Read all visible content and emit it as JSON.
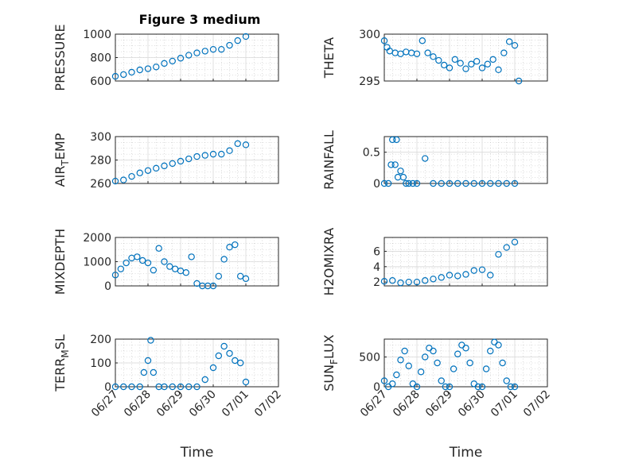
{
  "figure": {
    "title": "Figure 3 medium",
    "marker_color": "#0072BD"
  },
  "chart_data": [
    {
      "type": "scatter",
      "panel": "PRESSURE",
      "ylabel": "PRESSURE",
      "ylabel_sub": "",
      "ylabel_rest": "",
      "xlabel": "",
      "show_xticklabels": false,
      "xlim": [
        "06/27",
        "07/02"
      ],
      "xticks": [
        "06/27",
        "06/28",
        "06/29",
        "06/30",
        "07/01",
        "07/02"
      ],
      "ylim": [
        600,
        1000
      ],
      "yticks": [
        600,
        800,
        1000
      ],
      "x": [
        "06/27 00:00",
        "06/27 06:00",
        "06/27 12:00",
        "06/27 18:00",
        "06/28 00:00",
        "06/28 06:00",
        "06/28 12:00",
        "06/28 18:00",
        "06/29 00:00",
        "06/29 06:00",
        "06/29 12:00",
        "06/29 18:00",
        "06/30 00:00",
        "06/30 06:00",
        "06/30 12:00",
        "06/30 18:00",
        "07/01 00:00"
      ],
      "values": [
        640,
        655,
        675,
        695,
        705,
        720,
        750,
        770,
        795,
        820,
        840,
        855,
        870,
        870,
        905,
        945,
        980
      ]
    },
    {
      "type": "scatter",
      "panel": "THETA",
      "ylabel": "THETA",
      "ylabel_sub": "",
      "ylabel_rest": "",
      "xlabel": "",
      "show_xticklabels": false,
      "xlim": [
        "06/27",
        "07/02"
      ],
      "xticks": [
        "06/27",
        "06/28",
        "06/29",
        "06/30",
        "07/01",
        "07/02"
      ],
      "ylim": [
        295,
        300
      ],
      "yticks": [
        295,
        300
      ],
      "x": [
        "06/27 00:00",
        "06/27 02:00",
        "06/27 04:00",
        "06/27 08:00",
        "06/27 12:00",
        "06/27 16:00",
        "06/27 20:00",
        "06/28 00:00",
        "06/28 04:00",
        "06/28 08:00",
        "06/28 12:00",
        "06/28 16:00",
        "06/28 20:00",
        "06/29 00:00",
        "06/29 04:00",
        "06/29 08:00",
        "06/29 12:00",
        "06/29 16:00",
        "06/29 20:00",
        "06/30 00:00",
        "06/30 04:00",
        "06/30 08:00",
        "06/30 12:00",
        "06/30 16:00",
        "06/30 20:00",
        "07/01 00:00",
        "07/01 03:00"
      ],
      "values": [
        299.3,
        298.6,
        298.2,
        298.0,
        297.9,
        298.1,
        298.0,
        297.9,
        299.3,
        298.0,
        297.6,
        297.2,
        296.7,
        296.4,
        297.3,
        296.9,
        296.3,
        296.8,
        297.1,
        296.4,
        296.8,
        297.3,
        296.2,
        298.0,
        299.2,
        298.8,
        295.0
      ]
    },
    {
      "type": "scatter",
      "panel": "AIR_TEMP",
      "ylabel": "AIR",
      "ylabel_sub": "T",
      "ylabel_rest": "EMP",
      "xlabel": "",
      "show_xticklabels": false,
      "xlim": [
        "06/27",
        "07/02"
      ],
      "xticks": [
        "06/27",
        "06/28",
        "06/29",
        "06/30",
        "07/01",
        "07/02"
      ],
      "ylim": [
        260,
        300
      ],
      "yticks": [
        260,
        280,
        300
      ],
      "x": [
        "06/27 00:00",
        "06/27 06:00",
        "06/27 12:00",
        "06/27 18:00",
        "06/28 00:00",
        "06/28 06:00",
        "06/28 12:00",
        "06/28 18:00",
        "06/29 00:00",
        "06/29 06:00",
        "06/29 12:00",
        "06/29 18:00",
        "06/30 00:00",
        "06/30 06:00",
        "06/30 12:00",
        "06/30 18:00",
        "07/01 00:00"
      ],
      "values": [
        262,
        263,
        266,
        269,
        271,
        273,
        275,
        277,
        279,
        281,
        283,
        284,
        285,
        285,
        288,
        294,
        293
      ]
    },
    {
      "type": "scatter",
      "panel": "RAINFALL",
      "ylabel": "RAINFALL",
      "ylabel_sub": "",
      "ylabel_rest": "",
      "xlabel": "",
      "show_xticklabels": false,
      "xlim": [
        "06/27",
        "07/02"
      ],
      "xticks": [
        "06/27",
        "06/28",
        "06/29",
        "06/30",
        "07/01",
        "07/02"
      ],
      "ylim": [
        0,
        0.75
      ],
      "yticks": [
        0,
        0.5
      ],
      "x": [
        "06/27 00:00",
        "06/27 03:00",
        "06/27 05:00",
        "06/27 06:00",
        "06/27 08:00",
        "06/27 09:00",
        "06/27 10:00",
        "06/27 12:00",
        "06/27 14:00",
        "06/27 16:00",
        "06/27 18:00",
        "06/27 21:00",
        "06/28 00:00",
        "06/28 06:00",
        "06/28 12:00",
        "06/28 18:00",
        "06/29 00:00",
        "06/29 06:00",
        "06/29 12:00",
        "06/29 18:00",
        "06/30 00:00",
        "06/30 06:00",
        "06/30 12:00",
        "06/30 18:00",
        "07/01 00:00"
      ],
      "values": [
        0,
        0,
        0.3,
        0.7,
        0.3,
        0.7,
        0.1,
        0.2,
        0.1,
        0,
        0,
        0,
        0,
        0.4,
        0,
        0,
        0,
        0,
        0,
        0,
        0,
        0,
        0,
        0,
        0
      ]
    },
    {
      "type": "scatter",
      "panel": "MIXDEPTH",
      "ylabel": "MIXDEPTH",
      "ylabel_sub": "",
      "ylabel_rest": "",
      "xlabel": "",
      "show_xticklabels": false,
      "xlim": [
        "06/27",
        "07/02"
      ],
      "xticks": [
        "06/27",
        "06/28",
        "06/29",
        "06/30",
        "07/01",
        "07/02"
      ],
      "ylim": [
        0,
        2000
      ],
      "yticks": [
        0,
        1000,
        2000
      ],
      "x": [
        "06/27 00:00",
        "06/27 04:00",
        "06/27 08:00",
        "06/27 12:00",
        "06/27 16:00",
        "06/27 20:00",
        "06/28 00:00",
        "06/28 04:00",
        "06/28 08:00",
        "06/28 12:00",
        "06/28 16:00",
        "06/28 20:00",
        "06/29 00:00",
        "06/29 04:00",
        "06/29 08:00",
        "06/29 12:00",
        "06/29 16:00",
        "06/29 20:00",
        "06/30 00:00",
        "06/30 04:00",
        "06/30 08:00",
        "06/30 12:00",
        "06/30 16:00",
        "06/30 20:00",
        "07/01 00:00"
      ],
      "values": [
        450,
        700,
        950,
        1150,
        1200,
        1050,
        950,
        650,
        1550,
        1000,
        800,
        700,
        620,
        550,
        1200,
        100,
        0,
        0,
        0,
        400,
        1100,
        1600,
        1700,
        400,
        300
      ]
    },
    {
      "type": "scatter",
      "panel": "H2OMIXRA",
      "ylabel": "H2OMIXRA",
      "ylabel_sub": "",
      "ylabel_rest": "",
      "xlabel": "",
      "show_xticklabels": false,
      "xlim": [
        "06/27",
        "07/02"
      ],
      "xticks": [
        "06/27",
        "06/28",
        "06/29",
        "06/30",
        "07/01",
        "07/02"
      ],
      "ylim": [
        1.5,
        7.8
      ],
      "yticks": [
        2,
        4,
        6
      ],
      "x": [
        "06/27 00:00",
        "06/27 06:00",
        "06/27 12:00",
        "06/27 18:00",
        "06/28 00:00",
        "06/28 06:00",
        "06/28 12:00",
        "06/28 18:00",
        "06/29 00:00",
        "06/29 06:00",
        "06/29 12:00",
        "06/29 18:00",
        "06/30 00:00",
        "06/30 06:00",
        "06/30 12:00",
        "06/30 18:00",
        "07/01 00:00"
      ],
      "values": [
        2.1,
        2.2,
        1.9,
        2.0,
        2.0,
        2.2,
        2.4,
        2.6,
        2.9,
        2.8,
        3.0,
        3.5,
        3.6,
        2.9,
        5.6,
        6.5,
        7.2
      ]
    },
    {
      "type": "scatter",
      "panel": "TERR_MSL",
      "ylabel": "TERR",
      "ylabel_sub": "M",
      "ylabel_rest": "SL",
      "xlabel": "Time",
      "show_xticklabels": true,
      "xlim": [
        "06/27",
        "07/02"
      ],
      "xticks": [
        "06/27",
        "06/28",
        "06/29",
        "06/30",
        "07/01",
        "07/02"
      ],
      "ylim": [
        0,
        200
      ],
      "yticks": [
        0,
        100,
        200
      ],
      "x": [
        "06/27 00:00",
        "06/27 06:00",
        "06/27 12:00",
        "06/27 18:00",
        "06/27 21:00",
        "06/28 00:00",
        "06/28 02:00",
        "06/28 04:00",
        "06/28 08:00",
        "06/28 12:00",
        "06/28 18:00",
        "06/29 00:00",
        "06/29 06:00",
        "06/29 12:00",
        "06/29 18:00",
        "06/30 00:00",
        "06/30 04:00",
        "06/30 08:00",
        "06/30 12:00",
        "06/30 16:00",
        "06/30 20:00",
        "07/01 00:00"
      ],
      "values": [
        0,
        0,
        0,
        0,
        60,
        110,
        195,
        60,
        0,
        0,
        0,
        0,
        0,
        0,
        30,
        80,
        130,
        170,
        140,
        110,
        100,
        20
      ]
    },
    {
      "type": "scatter",
      "panel": "SUN_FLUX",
      "ylabel": "SUN",
      "ylabel_sub": "F",
      "ylabel_rest": "LUX",
      "xlabel": "Time",
      "show_xticklabels": true,
      "xlim": [
        "06/27",
        "07/02"
      ],
      "xticks": [
        "06/27",
        "06/28",
        "06/29",
        "06/30",
        "07/01",
        "07/02"
      ],
      "ylim": [
        0,
        800
      ],
      "yticks": [
        0,
        500
      ],
      "x": [
        "06/27 00:00",
        "06/27 03:00",
        "06/27 06:00",
        "06/27 09:00",
        "06/27 12:00",
        "06/27 15:00",
        "06/27 18:00",
        "06/27 21:00",
        "06/28 00:00",
        "06/28 03:00",
        "06/28 06:00",
        "06/28 09:00",
        "06/28 12:00",
        "06/28 15:00",
        "06/28 18:00",
        "06/28 21:00",
        "06/29 00:00",
        "06/29 03:00",
        "06/29 06:00",
        "06/29 09:00",
        "06/29 12:00",
        "06/29 15:00",
        "06/29 18:00",
        "06/29 21:00",
        "06/30 00:00",
        "06/30 03:00",
        "06/30 06:00",
        "06/30 09:00",
        "06/30 12:00",
        "06/30 15:00",
        "06/30 18:00",
        "06/30 21:00",
        "07/01 00:00"
      ],
      "values": [
        100,
        0,
        50,
        200,
        450,
        600,
        350,
        50,
        0,
        250,
        500,
        650,
        600,
        400,
        100,
        0,
        0,
        300,
        550,
        700,
        650,
        400,
        50,
        0,
        0,
        300,
        600,
        750,
        700,
        400,
        100,
        0,
        0
      ]
    }
  ]
}
